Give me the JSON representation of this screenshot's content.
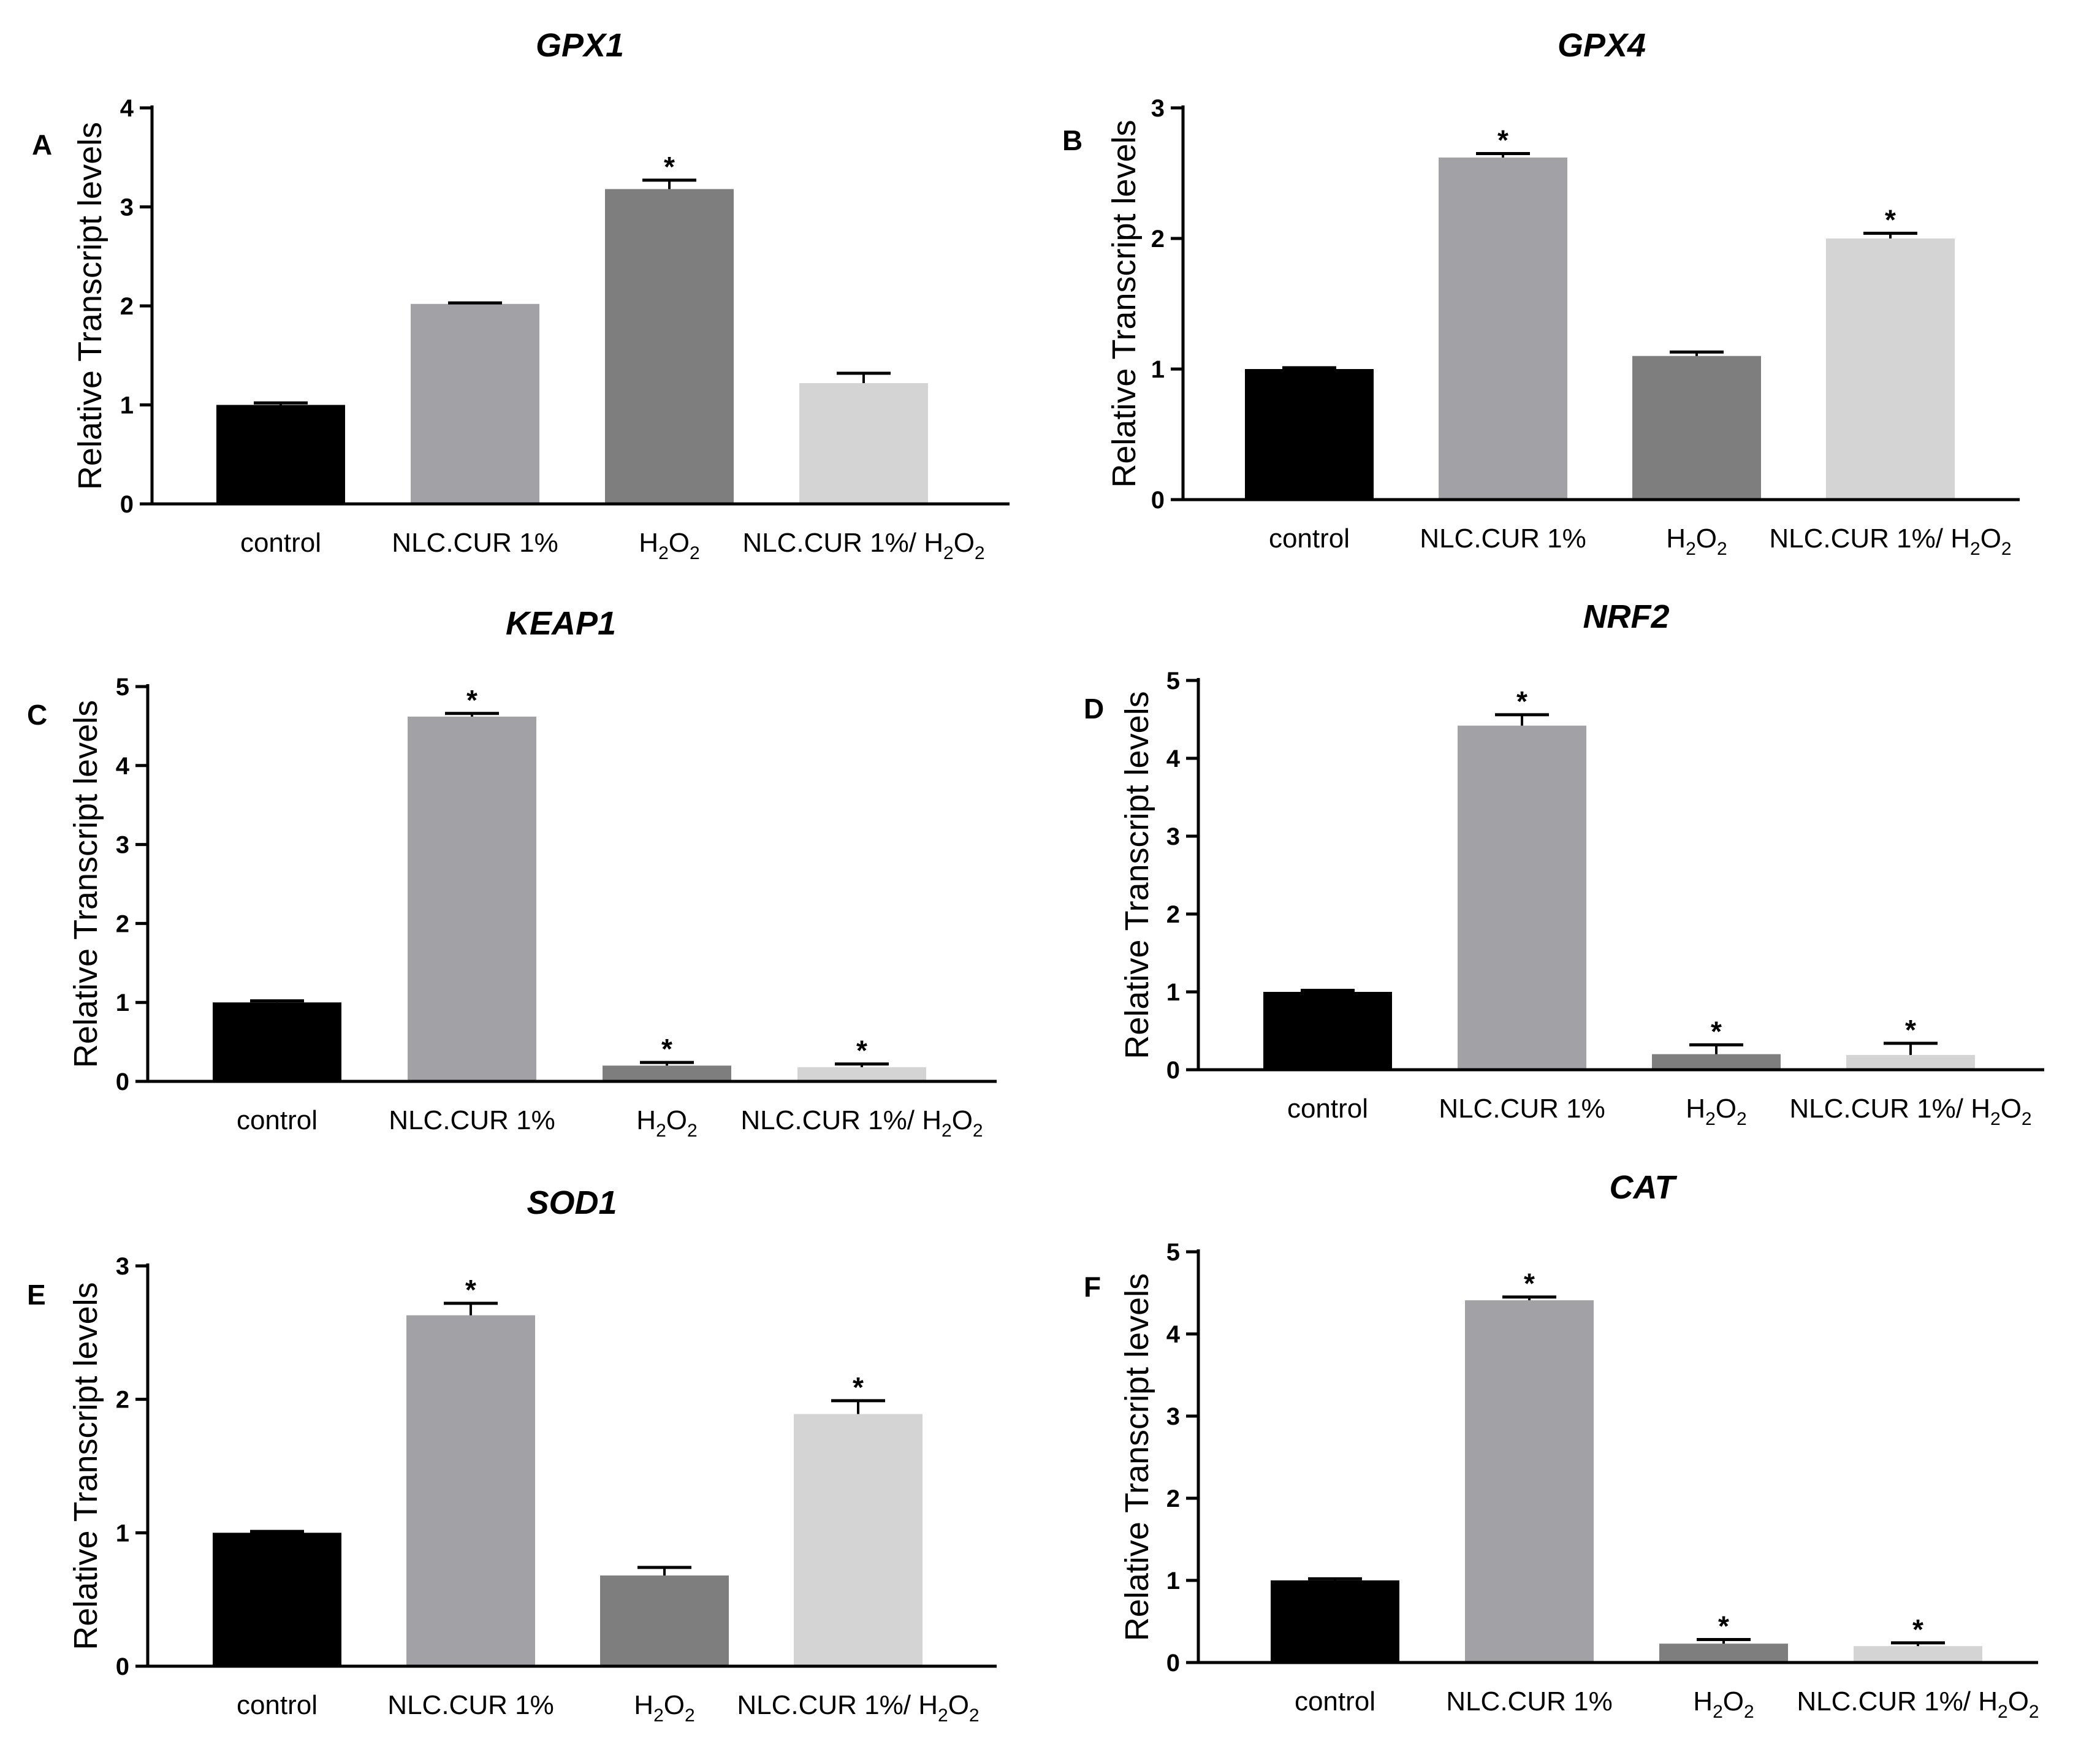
{
  "chart_data": [
    {
      "type": "bar",
      "panel": "A",
      "title": "GPX1",
      "ylabel": "Relative Transcript levels",
      "xlabel": "",
      "ylim": [
        0,
        4
      ],
      "yticks": [
        0,
        1,
        2,
        3,
        4
      ],
      "categories": [
        "control",
        "NLC.CUR 1%",
        "H2O2",
        "NLC.CUR 1%/ H2O2"
      ],
      "values": [
        1.0,
        2.02,
        3.18,
        1.22
      ],
      "errors": [
        0.02,
        0.01,
        0.09,
        0.1
      ],
      "significant": [
        false,
        false,
        true,
        false
      ],
      "colors": [
        "#000000",
        "#a2a2a6",
        "#7e7e7e",
        "#d4d4d4"
      ]
    },
    {
      "type": "bar",
      "panel": "B",
      "title": "GPX4",
      "ylabel": "Relative Transcript levels",
      "xlabel": "",
      "ylim": [
        0,
        3
      ],
      "yticks": [
        0,
        1,
        2,
        3
      ],
      "categories": [
        "control",
        "NLC.CUR 1%",
        "H2O2",
        "NLC.CUR 1%/ H2O2"
      ],
      "values": [
        1.0,
        2.62,
        1.1,
        2.0
      ],
      "errors": [
        0.01,
        0.03,
        0.03,
        0.04
      ],
      "significant": [
        false,
        true,
        false,
        true
      ],
      "colors": [
        "#000000",
        "#a2a2a6",
        "#7e7e7e",
        "#d4d4d4"
      ]
    },
    {
      "type": "bar",
      "panel": "C",
      "title": "KEAP1",
      "ylabel": "Relative Transcript levels",
      "xlabel": "",
      "ylim": [
        0,
        5
      ],
      "yticks": [
        0,
        1,
        2,
        3,
        4,
        5
      ],
      "categories": [
        "control",
        "NLC.CUR 1%",
        "H2O2",
        "NLC.CUR 1%/ H2O2"
      ],
      "values": [
        1.0,
        4.62,
        0.2,
        0.18
      ],
      "errors": [
        0.02,
        0.04,
        0.04,
        0.04
      ],
      "significant": [
        false,
        true,
        true,
        true
      ],
      "colors": [
        "#000000",
        "#a2a2a6",
        "#7e7e7e",
        "#d4d4d4"
      ]
    },
    {
      "type": "bar",
      "panel": "D",
      "title": "NRF2",
      "ylabel": "Relative Transcript levels",
      "xlabel": "",
      "ylim": [
        0,
        5
      ],
      "yticks": [
        0,
        1,
        2,
        3,
        4,
        5
      ],
      "categories": [
        "control",
        "NLC.CUR 1%",
        "H2O2",
        "NLC.CUR 1%/ H2O2"
      ],
      "values": [
        1.0,
        4.42,
        0.2,
        0.19
      ],
      "errors": [
        0.02,
        0.14,
        0.12,
        0.15
      ],
      "significant": [
        false,
        true,
        true,
        true
      ],
      "colors": [
        "#000000",
        "#a2a2a6",
        "#7e7e7e",
        "#d4d4d4"
      ]
    },
    {
      "type": "bar",
      "panel": "E",
      "title": "SOD1",
      "ylabel": "Relative Transcript levels",
      "xlabel": "",
      "ylim": [
        0,
        3
      ],
      "yticks": [
        0,
        1,
        2,
        3
      ],
      "categories": [
        "control",
        "NLC.CUR 1%",
        "H2O2",
        "NLC.CUR 1%/ H2O2"
      ],
      "values": [
        1.0,
        2.63,
        0.68,
        1.89
      ],
      "errors": [
        0.01,
        0.09,
        0.06,
        0.1
      ],
      "significant": [
        false,
        true,
        false,
        true
      ],
      "colors": [
        "#000000",
        "#a2a2a6",
        "#7e7e7e",
        "#d4d4d4"
      ]
    },
    {
      "type": "bar",
      "panel": "F",
      "title": "CAT",
      "ylabel": "Relative Transcript levels",
      "xlabel": "",
      "ylim": [
        0,
        5
      ],
      "yticks": [
        0,
        1,
        2,
        3,
        4,
        5
      ],
      "categories": [
        "control",
        "NLC.CUR 1%",
        "H2O2",
        "NLC.CUR 1%/ H2O2"
      ],
      "values": [
        1.0,
        4.41,
        0.23,
        0.2
      ],
      "errors": [
        0.02,
        0.04,
        0.05,
        0.04
      ],
      "significant": [
        false,
        true,
        true,
        true
      ],
      "colors": [
        "#000000",
        "#a2a2a6",
        "#7e7e7e",
        "#d4d4d4"
      ]
    }
  ]
}
